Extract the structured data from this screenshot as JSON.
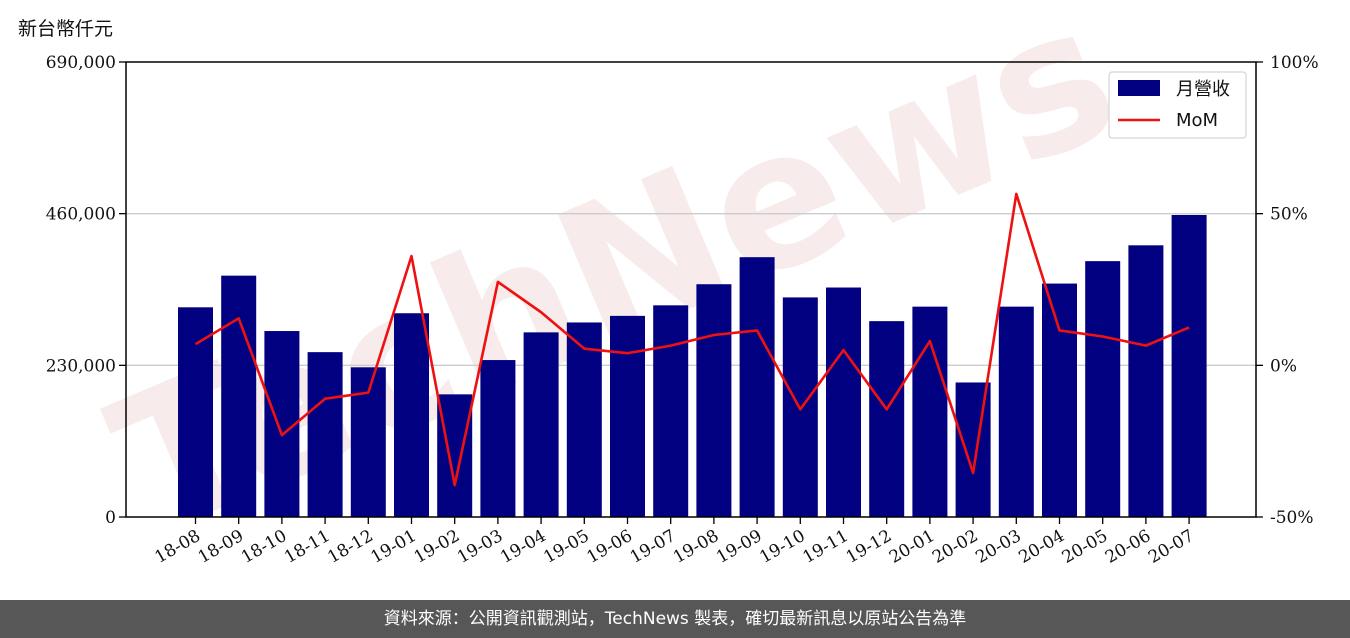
{
  "unit_label": "新台幣仟元",
  "footer_text": "資料來源：公開資訊觀測站，TechNews 製表，確切最新訊息以原站公告為準",
  "watermark_text": "TechNews",
  "colors": {
    "bar": "#000080",
    "line": "#ee1111",
    "grid": "#cccccc",
    "footer_bg": "#575757"
  },
  "chart_data": {
    "type": "bar",
    "categories": [
      "18-08",
      "18-09",
      "18-10",
      "18-11",
      "18-12",
      "19-01",
      "19-02",
      "19-03",
      "19-04",
      "19-05",
      "19-06",
      "19-07",
      "19-08",
      "19-09",
      "19-10",
      "19-11",
      "19-12",
      "20-01",
      "20-02",
      "20-03",
      "20-04",
      "20-05",
      "20-06",
      "20-07"
    ],
    "series": [
      {
        "name": "月營收",
        "type": "bar",
        "axis": "left",
        "values": [
          318000,
          366000,
          282000,
          250000,
          227000,
          309000,
          186000,
          238000,
          280000,
          295000,
          305000,
          321000,
          353000,
          394000,
          333000,
          348000,
          297000,
          319000,
          204000,
          319000,
          354000,
          388000,
          412000,
          458000
        ]
      },
      {
        "name": "MoM",
        "type": "line",
        "axis": "right",
        "values": [
          7,
          15.5,
          -23,
          -11,
          -9,
          36,
          -39.5,
          27.5,
          17.5,
          5.5,
          4,
          6.5,
          10,
          11.5,
          -14.5,
          5,
          -14.5,
          8,
          -35.5,
          56.5,
          11.5,
          9.5,
          6.5,
          12.5
        ]
      }
    ],
    "y_left": {
      "ylim": [
        0,
        690000
      ],
      "ticks": [
        "0",
        "230,000",
        "460,000",
        "690,000"
      ],
      "tick_values": [
        0,
        230000,
        460000,
        690000
      ]
    },
    "y_right": {
      "ylim": [
        -50,
        100
      ],
      "ticks": [
        "-50%",
        "0%",
        "50%",
        "100%"
      ],
      "tick_values": [
        -50,
        0,
        50,
        100
      ]
    },
    "grid": "horizontal",
    "legend_position": "top-right"
  }
}
